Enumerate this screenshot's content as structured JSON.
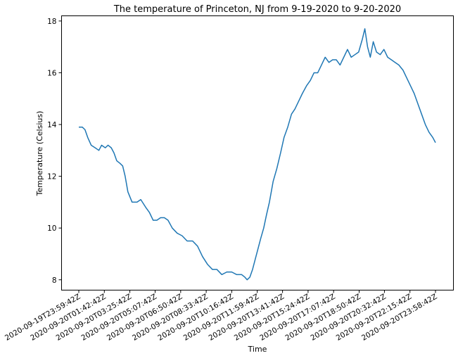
{
  "chart_data": {
    "type": "line",
    "title": "The temperature of Princeton, NJ from 9-19-2020 to 9-20-2020",
    "xlabel": "Time",
    "ylabel": "Temperature (Celsius)",
    "x_tick_labels": [
      "2020-09-19T23:59:42Z",
      "2020-09-20T01:42:42Z",
      "2020-09-20T03:25:42Z",
      "2020-09-20T05:07:42Z",
      "2020-09-20T06:50:42Z",
      "2020-09-20T08:33:42Z",
      "2020-09-20T10:16:42Z",
      "2020-09-20T11:59:42Z",
      "2020-09-20T13:41:42Z",
      "2020-09-20T15:24:42Z",
      "2020-09-20T17:07:42Z",
      "2020-09-20T18:50:42Z",
      "2020-09-20T20:32:42Z",
      "2020-09-20T22:15:42Z",
      "2020-09-20T23:58:42Z"
    ],
    "y_ticks": [
      8,
      10,
      12,
      14,
      16,
      18
    ],
    "ylim": [
      7.6,
      18.2
    ],
    "grid": false,
    "series": [
      {
        "color": "#1f77b4",
        "x": [
          "2020-09-19T23:59:42Z",
          "2020-09-20T00:13:42Z",
          "2020-09-20T00:24:42Z",
          "2020-09-20T00:35:42Z",
          "2020-09-20T00:49:42Z",
          "2020-09-20T01:05:42Z",
          "2020-09-20T01:20:42Z",
          "2020-09-20T01:31:42Z",
          "2020-09-20T01:46:42Z",
          "2020-09-20T01:57:42Z",
          "2020-09-20T02:10:42Z",
          "2020-09-20T02:21:42Z",
          "2020-09-20T02:32:42Z",
          "2020-09-20T02:45:42Z",
          "2020-09-20T02:56:42Z",
          "2020-09-20T03:06:42Z",
          "2020-09-20T03:17:42Z",
          "2020-09-20T03:34:42Z",
          "2020-09-20T03:54:42Z",
          "2020-09-20T04:09:42Z",
          "2020-09-20T04:29:42Z",
          "2020-09-20T04:44:42Z",
          "2020-09-20T04:59:42Z",
          "2020-09-20T05:14:42Z",
          "2020-09-20T05:29:42Z",
          "2020-09-20T05:44:42Z",
          "2020-09-20T05:59:42Z",
          "2020-09-20T06:16:42Z",
          "2020-09-20T06:36:42Z",
          "2020-09-20T06:56:42Z",
          "2020-09-20T07:16:42Z",
          "2020-09-20T07:38:42Z",
          "2020-09-20T07:58:42Z",
          "2020-09-20T08:18:42Z",
          "2020-09-20T08:38:42Z",
          "2020-09-20T08:58:42Z",
          "2020-09-20T09:16:42Z",
          "2020-09-20T09:36:42Z",
          "2020-09-20T09:56:42Z",
          "2020-09-20T10:16:42Z",
          "2020-09-20T10:36:42Z",
          "2020-09-20T10:56:42Z",
          "2020-09-20T11:09:42Z",
          "2020-09-20T11:18:42Z",
          "2020-09-20T11:29:42Z",
          "2020-09-20T11:40:42Z",
          "2020-09-20T11:51:42Z",
          "2020-09-20T12:02:42Z",
          "2020-09-20T12:13:42Z",
          "2020-09-20T12:25:42Z",
          "2020-09-20T12:36:42Z",
          "2020-09-20T12:48:42Z",
          "2020-09-20T13:03:42Z",
          "2020-09-20T13:18:42Z",
          "2020-09-20T13:33:42Z",
          "2020-09-20T13:47:42Z",
          "2020-09-20T14:02:42Z",
          "2020-09-20T14:17:42Z",
          "2020-09-20T14:31:42Z",
          "2020-09-20T14:46:42Z",
          "2020-09-20T15:01:42Z",
          "2020-09-20T15:18:42Z",
          "2020-09-20T15:33:42Z",
          "2020-09-20T15:48:42Z",
          "2020-09-20T16:03:42Z",
          "2020-09-20T16:18:42Z",
          "2020-09-20T16:33:42Z",
          "2020-09-20T16:48:42Z",
          "2020-09-20T17:03:42Z",
          "2020-09-20T17:18:42Z",
          "2020-09-20T17:33:42Z",
          "2020-09-20T17:48:42Z",
          "2020-09-20T18:03:42Z",
          "2020-09-20T18:18:42Z",
          "2020-09-20T18:33:42Z",
          "2020-09-20T18:48:42Z",
          "2020-09-20T19:03:42Z",
          "2020-09-20T19:13:42Z",
          "2020-09-20T19:24:42Z",
          "2020-09-20T19:35:42Z",
          "2020-09-20T19:47:42Z",
          "2020-09-20T20:00:42Z",
          "2020-09-20T20:15:42Z",
          "2020-09-20T20:30:42Z",
          "2020-09-20T20:45:42Z",
          "2020-09-20T21:00:42Z",
          "2020-09-20T21:15:42Z",
          "2020-09-20T21:30:42Z",
          "2020-09-20T21:47:42Z",
          "2020-09-20T22:02:42Z",
          "2020-09-20T22:17:42Z",
          "2020-09-20T22:32:42Z",
          "2020-09-20T22:47:42Z",
          "2020-09-20T23:02:42Z",
          "2020-09-20T23:17:42Z",
          "2020-09-20T23:32:42Z",
          "2020-09-20T23:47:42Z",
          "2020-09-20T23:58:42Z"
        ],
        "values": [
          13.9,
          13.9,
          13.8,
          13.5,
          13.2,
          13.1,
          13.0,
          13.2,
          13.1,
          13.2,
          13.1,
          12.9,
          12.6,
          12.5,
          12.4,
          12.0,
          11.4,
          11.0,
          11.0,
          11.1,
          10.8,
          10.6,
          10.3,
          10.3,
          10.4,
          10.4,
          10.3,
          10.0,
          9.8,
          9.7,
          9.5,
          9.5,
          9.3,
          8.9,
          8.6,
          8.4,
          8.4,
          8.2,
          8.3,
          8.3,
          8.2,
          8.2,
          8.1,
          8.0,
          8.1,
          8.4,
          8.8,
          9.2,
          9.6,
          10.0,
          10.5,
          11.0,
          11.8,
          12.3,
          12.9,
          13.5,
          13.9,
          14.4,
          14.6,
          14.9,
          15.2,
          15.5,
          15.7,
          16.0,
          16.0,
          16.3,
          16.6,
          16.4,
          16.5,
          16.5,
          16.3,
          16.6,
          16.9,
          16.6,
          16.7,
          16.8,
          17.3,
          17.7,
          17.0,
          16.6,
          17.2,
          16.8,
          16.7,
          16.9,
          16.6,
          16.5,
          16.4,
          16.3,
          16.1,
          15.8,
          15.5,
          15.2,
          14.8,
          14.4,
          14.0,
          13.7,
          13.5,
          13.3
        ]
      }
    ]
  }
}
